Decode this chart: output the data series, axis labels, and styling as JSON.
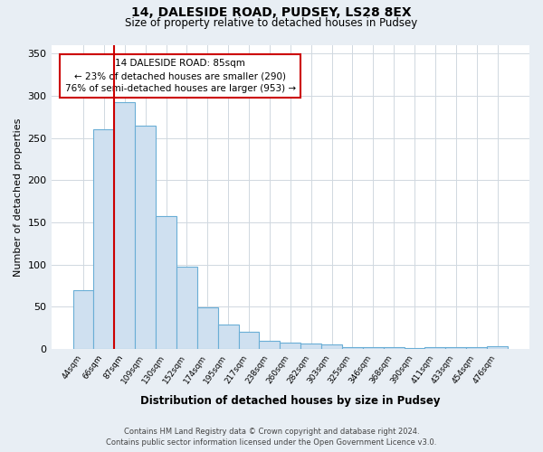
{
  "title": "14, DALESIDE ROAD, PUDSEY, LS28 8EX",
  "subtitle": "Size of property relative to detached houses in Pudsey",
  "xlabel": "Distribution of detached houses by size in Pudsey",
  "ylabel": "Number of detached properties",
  "categories": [
    "44sqm",
    "66sqm",
    "87sqm",
    "109sqm",
    "130sqm",
    "152sqm",
    "174sqm",
    "195sqm",
    "217sqm",
    "238sqm",
    "260sqm",
    "282sqm",
    "303sqm",
    "325sqm",
    "346sqm",
    "368sqm",
    "390sqm",
    "411sqm",
    "433sqm",
    "454sqm",
    "476sqm"
  ],
  "values": [
    70,
    260,
    293,
    265,
    158,
    98,
    49,
    29,
    20,
    10,
    8,
    6,
    5,
    2,
    2,
    2,
    1,
    2,
    2,
    2,
    3
  ],
  "bar_color": "#cfe0f0",
  "bar_edge_color": "#6aaed6",
  "marker_label": "14 DALESIDE ROAD: 85sqm",
  "annotation_line1": "← 23% of detached houses are smaller (290)",
  "annotation_line2": "76% of semi-detached houses are larger (953) →",
  "marker_color": "#cc0000",
  "annotation_box_edge": "#cc0000",
  "ylim": [
    0,
    360
  ],
  "yticks": [
    0,
    50,
    100,
    150,
    200,
    250,
    300,
    350
  ],
  "footer_line1": "Contains HM Land Registry data © Crown copyright and database right 2024.",
  "footer_line2": "Contains public sector information licensed under the Open Government Licence v3.0.",
  "bg_color": "#e8eef4",
  "plot_bg_color": "#ffffff"
}
